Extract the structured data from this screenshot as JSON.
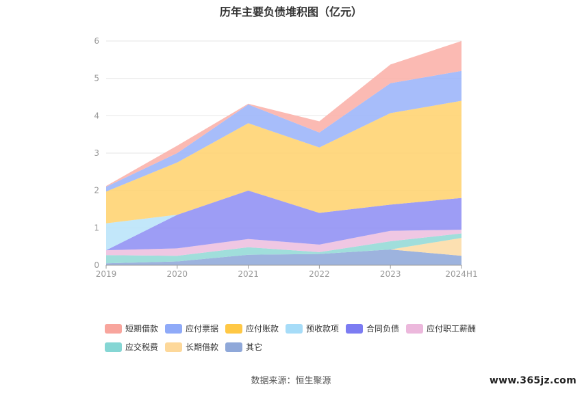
{
  "chart_data": {
    "type": "area",
    "stacked": true,
    "title": "历年主要负债堆积图（亿元）",
    "categories": [
      "2019",
      "2020",
      "2021",
      "2022",
      "2023",
      "2024H1"
    ],
    "ylim": [
      0,
      6
    ],
    "yticks": [
      "0",
      "1",
      "2",
      "3",
      "4",
      "5",
      "6"
    ],
    "grid": true,
    "legend_position": "bottom",
    "series": [
      {
        "name": "其它",
        "color": "#8fa8d9",
        "values": [
          0.05,
          0.1,
          0.28,
          0.3,
          0.42,
          0.25
        ]
      },
      {
        "name": "长期借款",
        "color": "#fcdca6",
        "values": [
          0,
          0,
          0,
          0,
          0,
          0.48
        ]
      },
      {
        "name": "应交税费",
        "color": "#93d9d6",
        "values": [
          0.22,
          0.15,
          0.2,
          0.05,
          0.22,
          0.12
        ]
      },
      {
        "name": "应付职工薪酬",
        "color": "#edbfdf",
        "values": [
          0.13,
          0.2,
          0.22,
          0.2,
          0.28,
          0.1
        ]
      },
      {
        "name": "合同负债",
        "color": "#8f8ff4",
        "values": [
          0,
          0.9,
          1.3,
          0.85,
          0.7,
          0.85
        ]
      },
      {
        "name": "预收款项",
        "color": "#b9e4f9",
        "values": [
          0.72,
          0,
          0,
          0,
          0,
          0
        ]
      },
      {
        "name": "应付账款",
        "color": "#ffd370",
        "values": [
          0.85,
          1.4,
          1.8,
          1.75,
          2.45,
          2.6
        ]
      },
      {
        "name": "应付票据",
        "color": "#9bb4f9",
        "values": [
          0.13,
          0.25,
          0.5,
          0.4,
          0.8,
          0.8
        ]
      },
      {
        "name": "短期借款",
        "color": "#fbb0a8",
        "values": [
          0.02,
          0.2,
          0.02,
          0.3,
          0.5,
          0.8
        ]
      }
    ]
  },
  "legend_order": [
    {
      "name": "短期借款",
      "color": "#f8a59d"
    },
    {
      "name": "应付票据",
      "color": "#8faaf8"
    },
    {
      "name": "应付账款",
      "color": "#ffc845"
    },
    {
      "name": "预收款项",
      "color": "#a6dcf8"
    },
    {
      "name": "合同负债",
      "color": "#7c7cf2"
    },
    {
      "name": "应付职工薪酬",
      "color": "#ecb8dc"
    },
    {
      "name": "应交税费",
      "color": "#85d6d4"
    },
    {
      "name": "长期借款",
      "color": "#fdd89a"
    },
    {
      "name": "其它",
      "color": "#8fa8d9"
    }
  ],
  "source": "数据来源：恒生聚源",
  "watermark": "www.365jz.com"
}
